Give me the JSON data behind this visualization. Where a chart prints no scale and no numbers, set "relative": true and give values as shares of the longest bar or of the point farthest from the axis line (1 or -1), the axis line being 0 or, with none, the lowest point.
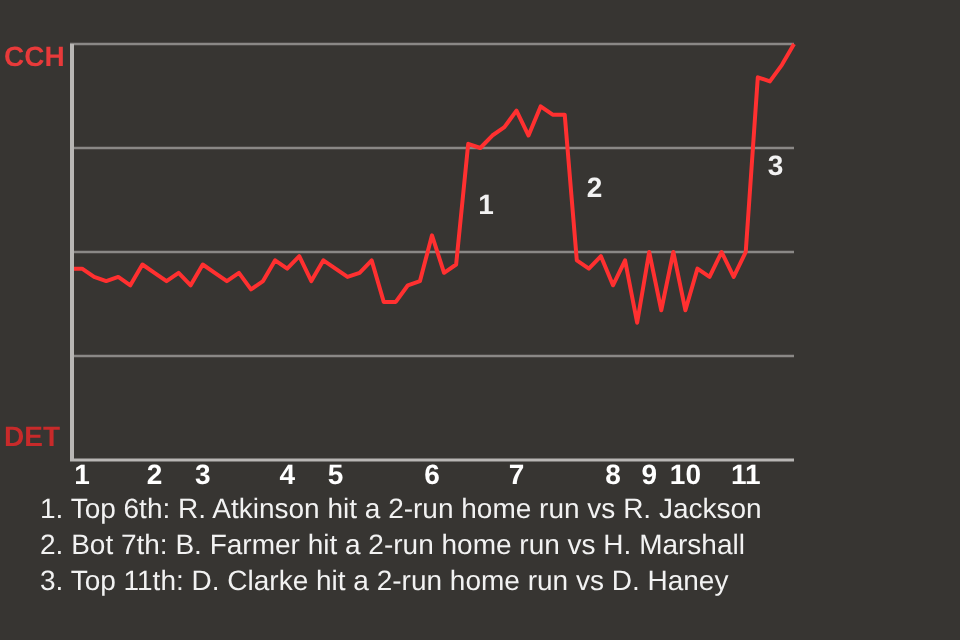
{
  "chart_data": {
    "type": "line",
    "relative": true,
    "categories": [
      null,
      "1",
      null,
      null,
      null,
      null,
      null,
      "2",
      null,
      null,
      null,
      "3",
      null,
      null,
      null,
      null,
      null,
      null,
      "4",
      null,
      null,
      null,
      "5",
      null,
      null,
      null,
      null,
      null,
      null,
      null,
      "6",
      null,
      null,
      null,
      null,
      null,
      null,
      "7",
      null,
      null,
      null,
      null,
      null,
      null,
      null,
      "8",
      null,
      null,
      "9",
      null,
      null,
      "10",
      null,
      null,
      null,
      null,
      "11",
      null,
      null,
      null,
      null
    ],
    "series": [
      {
        "color": "#ff3030",
        "values": [
          0.46,
          0.46,
          0.44,
          0.43,
          0.44,
          0.42,
          0.47,
          0.45,
          0.43,
          0.45,
          0.42,
          0.47,
          0.45,
          0.43,
          0.45,
          0.41,
          0.43,
          0.48,
          0.46,
          0.49,
          0.43,
          0.48,
          0.46,
          0.44,
          0.45,
          0.48,
          0.38,
          0.38,
          0.42,
          0.43,
          0.54,
          0.45,
          0.47,
          0.76,
          0.75,
          0.78,
          0.8,
          0.84,
          0.78,
          0.85,
          0.83,
          0.83,
          0.48,
          0.46,
          0.49,
          0.42,
          0.48,
          0.33,
          0.5,
          0.36,
          0.5,
          0.36,
          0.46,
          0.44,
          0.5,
          0.44,
          0.5,
          0.92,
          0.91,
          0.95,
          1
        ]
      }
    ],
    "grid": "y",
    "legend": false,
    "marker": "none",
    "line_style": "solid",
    "annotations": [
      "CCH",
      "DET",
      "1",
      "2",
      "3",
      "1. Top 6th: R. Atkinson hit a 2-run home run vs R. Jackson",
      "2. Bot 7th: B. Farmer hit a 2-run home run vs H. Marshall",
      "3. Top 11th: D. Clarke hit a 2-run home run vs D. Haney"
    ]
  }
}
